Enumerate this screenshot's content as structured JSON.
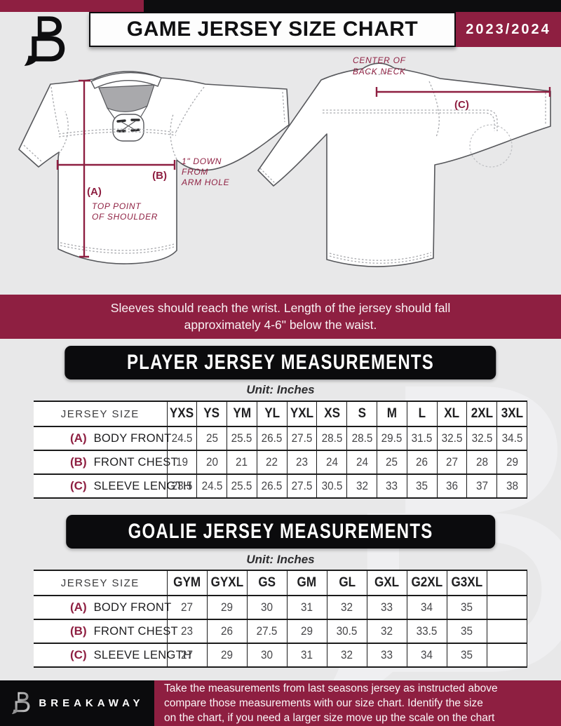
{
  "colors": {
    "maroon": "#8e1f41",
    "banner_black": "#0b0b0d",
    "page_gray": "#e8e8e9"
  },
  "header": {
    "title": "GAME JERSEY SIZE CHART",
    "season": "2023/2024"
  },
  "diagram": {
    "front": {
      "a_key": "(A)",
      "a_caption": [
        "TOP POINT",
        "OF SHOULDER"
      ],
      "b_key": "(B)",
      "b_caption": [
        "1\" DOWN",
        "FROM",
        "ARM HOLE"
      ]
    },
    "back": {
      "c_key": "(C)",
      "c_caption": [
        "CENTER OF",
        "BACK NECK"
      ]
    }
  },
  "notice": {
    "line1": "Sleeves should reach the wrist. Length of the jersey should fall",
    "line2": "approximately 4-6\" below the waist."
  },
  "player_table": {
    "heading": "PLAYER JERSEY MEASUREMENTS",
    "unit": "Unit: Inches",
    "size_label": "JERSEY SIZE",
    "sizes": [
      "YXS",
      "YS",
      "YM",
      "YL",
      "YXL",
      "XS",
      "S",
      "M",
      "L",
      "XL",
      "2XL",
      "3XL"
    ],
    "rows": [
      {
        "key": "(A)",
        "label": "BODY FRONT",
        "values": [
          "24.5",
          "25",
          "25.5",
          "26.5",
          "27.5",
          "28.5",
          "28.5",
          "29.5",
          "31.5",
          "32.5",
          "32.5",
          "34.5"
        ]
      },
      {
        "key": "(B)",
        "label": "FRONT CHEST",
        "values": [
          "19",
          "20",
          "21",
          "22",
          "23",
          "24",
          "24",
          "25",
          "26",
          "27",
          "28",
          "29"
        ]
      },
      {
        "key": "(C)",
        "label": "SLEEVE LENGTH",
        "values": [
          "23.5",
          "24.5",
          "25.5",
          "26.5",
          "27.5",
          "30.5",
          "32",
          "33",
          "35",
          "36",
          "37",
          "38"
        ]
      }
    ]
  },
  "goalie_table": {
    "heading": "GOALIE JERSEY MEASUREMENTS",
    "unit": "Unit: Inches",
    "size_label": "JERSEY SIZE",
    "sizes": [
      "GYM",
      "GYXL",
      "GS",
      "GM",
      "GL",
      "GXL",
      "G2XL",
      "G3XL",
      ""
    ],
    "rows": [
      {
        "key": "(A)",
        "label": "BODY FRONT",
        "values": [
          "27",
          "29",
          "30",
          "31",
          "32",
          "33",
          "34",
          "35",
          ""
        ]
      },
      {
        "key": "(B)",
        "label": "FRONT CHEST",
        "values": [
          "23",
          "26",
          "27.5",
          "29",
          "30.5",
          "32",
          "33.5",
          "35",
          ""
        ]
      },
      {
        "key": "(C)",
        "label": "SLEEVE LENGTH",
        "values": [
          "27",
          "29",
          "30",
          "31",
          "32",
          "33",
          "34",
          "35",
          ""
        ]
      }
    ]
  },
  "footer": {
    "brand": "BREAKAWAY",
    "lines": [
      "Take the measurements from last seasons jersey as instructed above",
      "compare those measurements  with our size chart. Identify the size",
      "on the chart, if you need a larger size move up the scale on the chart"
    ]
  }
}
